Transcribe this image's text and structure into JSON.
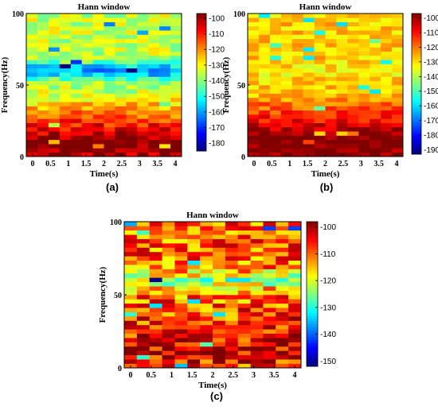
{
  "figure": {
    "captions": [
      "(a)",
      "(b)",
      "(c)"
    ]
  },
  "chart_data": [
    {
      "type": "heatmap",
      "title": "Hann window",
      "xlabel": "Time(s)",
      "ylabel": "Frequency(Hz)",
      "x_ticks": [
        "0",
        "0.5",
        "1",
        "1.5",
        "2",
        "2.5",
        "3",
        "3.5",
        "4"
      ],
      "y_ticks": [
        "0",
        "50",
        "100"
      ],
      "xlim": [
        0,
        4
      ],
      "ylim": [
        0,
        100
      ],
      "colorbar": {
        "ticks": [
          "-100",
          "-110",
          "-120",
          "-130",
          "-140",
          "-150",
          "-160",
          "-170",
          "-180"
        ],
        "range": [
          -185,
          -97
        ]
      },
      "colormap": "jet",
      "grid": false,
      "time_bins": 14,
      "freq_bins": 34,
      "profile": {
        "low_freq_level": -102,
        "mid_dip_freq": 60,
        "mid_dip_level": -160,
        "high_freq_level": -135,
        "variation": 8
      }
    },
    {
      "type": "heatmap",
      "title": "Hann window",
      "xlabel": "Time(s)",
      "ylabel": "Frequency(Hz)",
      "x_ticks": [
        "0",
        "0.5",
        "1",
        "1.5",
        "2",
        "2.5",
        "3",
        "3.5",
        "4"
      ],
      "y_ticks": [
        "0",
        "50",
        "100"
      ],
      "xlim": [
        0,
        4
      ],
      "ylim": [
        0,
        100
      ],
      "colorbar": {
        "ticks": [
          "-100",
          "-110",
          "-120",
          "-130",
          "-140",
          "-150",
          "-160",
          "-170",
          "-180",
          "-190"
        ],
        "range": [
          -193,
          -97
        ]
      },
      "colormap": "jet",
      "grid": false,
      "time_bins": 14,
      "freq_bins": 34,
      "profile": {
        "low_freq_level": -100,
        "mid_dip_freq": 60,
        "mid_dip_level": -132,
        "high_freq_level": -128,
        "variation": 7
      }
    },
    {
      "type": "heatmap",
      "title": "Hann window",
      "xlabel": "Time(s)",
      "ylabel": "Frequency(Hz)",
      "x_ticks": [
        "0",
        "0.5",
        "1",
        "1.5",
        "2",
        "2.5",
        "3",
        "3.5",
        "4"
      ],
      "y_ticks": [
        "0",
        "50",
        "100"
      ],
      "xlim": [
        0,
        4
      ],
      "ylim": [
        0,
        100
      ],
      "colorbar": {
        "ticks": [
          "-100",
          "-110",
          "-120",
          "-130",
          "-140",
          "-150"
        ],
        "range": [
          -152,
          -98
        ]
      },
      "colormap": "jet",
      "grid": false,
      "time_bins": 14,
      "freq_bins": 34,
      "profile": {
        "low_freq_level": -108,
        "mid_dip_freq": 60,
        "mid_dip_level": -124,
        "high_freq_level": -110,
        "variation": 9
      }
    }
  ]
}
